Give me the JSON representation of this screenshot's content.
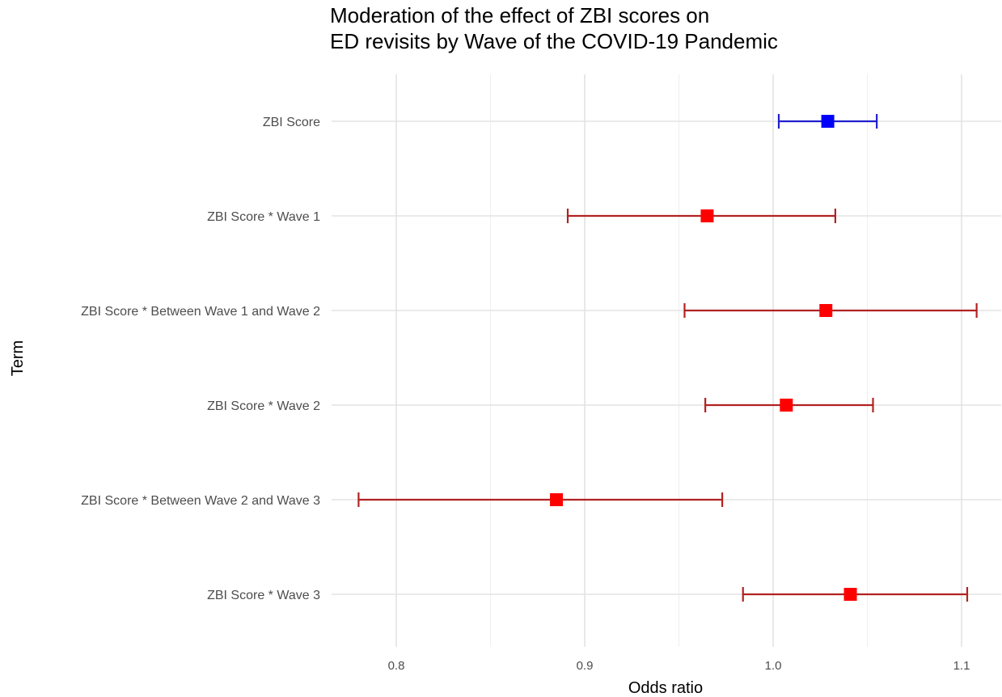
{
  "chart_data": {
    "type": "forest",
    "title_lines": [
      "Moderation of the effect of ZBI scores on",
      "ED revisits by Wave of the COVID-19 Pandemic"
    ],
    "xlabel": "Odds ratio",
    "ylabel": "Term",
    "xlim": [
      0.765,
      1.125
    ],
    "x_ticks": [
      0.8,
      0.9,
      1.0,
      1.1
    ],
    "x_tick_labels": [
      "0.8",
      "0.9",
      "1.0",
      "1.1"
    ],
    "x_minor_ticks": [
      0.85,
      0.95,
      1.05
    ],
    "grid": true,
    "legend": "none",
    "terms": [
      {
        "label": "ZBI Score",
        "estimate": 1.029,
        "low": 1.003,
        "high": 1.055,
        "line_color": "#1f1fcc",
        "point_color": "#0000ff"
      },
      {
        "label": "ZBI Score * Wave 1",
        "estimate": 0.965,
        "low": 0.891,
        "high": 1.033,
        "line_color": "#b22222",
        "point_color": "#ff0000"
      },
      {
        "label": "ZBI Score * Between Wave 1 and Wave 2",
        "estimate": 1.028,
        "low": 0.953,
        "high": 1.108,
        "line_color": "#b22222",
        "point_color": "#ff0000"
      },
      {
        "label": "ZBI Score * Wave 2",
        "estimate": 1.007,
        "low": 0.964,
        "high": 1.053,
        "line_color": "#b22222",
        "point_color": "#ff0000"
      },
      {
        "label": "ZBI Score * Between Wave 2 and Wave 3",
        "estimate": 0.885,
        "low": 0.78,
        "high": 0.973,
        "line_color": "#b22222",
        "point_color": "#ff0000"
      },
      {
        "label": "ZBI Score * Wave 3",
        "estimate": 1.041,
        "low": 0.984,
        "high": 1.103,
        "line_color": "#b22222",
        "point_color": "#ff0000"
      }
    ]
  }
}
